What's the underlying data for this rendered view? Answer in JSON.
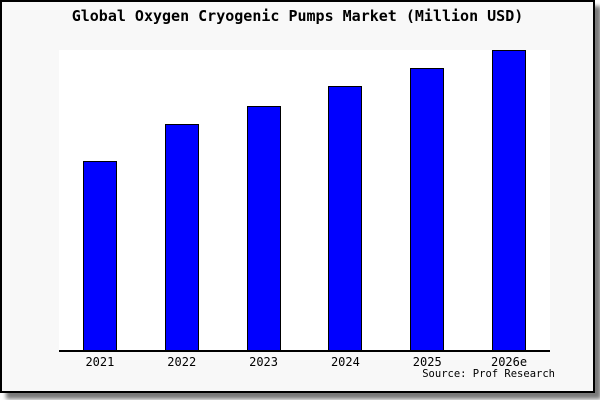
{
  "chart_data": {
    "type": "bar",
    "title": "Global Oxygen Cryogenic Pumps Market (Million USD)",
    "categories": [
      "2021",
      "2022",
      "2023",
      "2024",
      "2025",
      "2026e"
    ],
    "values": [
      63,
      75.3,
      81.5,
      88,
      94,
      100
    ],
    "values_note": "No numeric axis shown; values are relative bar heights with 2026e = 100",
    "xlabel": "",
    "ylabel": "",
    "ylim": [
      0,
      100.5
    ],
    "grid": false,
    "legend": "none",
    "source": "Source: Prof Research",
    "colors": {
      "bar_fill": "#0000ff",
      "bar_edge": "#000000",
      "plot_background": "#ffffff",
      "figure_background": "#f8f8f8",
      "figure_border": "#000000",
      "text": "#000000",
      "shadow": "#7a7a7a"
    }
  }
}
